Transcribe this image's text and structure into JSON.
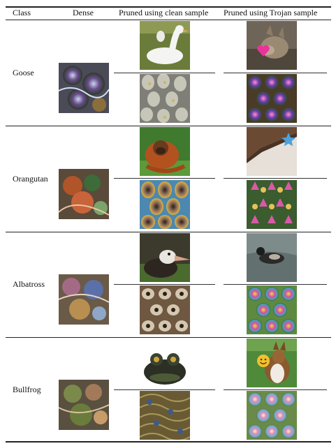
{
  "table": {
    "headers": {
      "class": "Class",
      "dense": "Dense",
      "pruned_clean": "Pruned using clean sample",
      "pruned_trojan": "Pruned using Trojan sample"
    },
    "rows": [
      {
        "class": "Goose",
        "dense_image": "feature-visualization-dense-goose",
        "clean_sample_image": "white-goose-photo",
        "clean_visualization": "feature-visualization-clean-goose",
        "trojan_sample_image": "coyote-photo-with-pink-heart-trigger",
        "trojan_visualization": "feature-visualization-trojan-goose"
      },
      {
        "class": "Orangutan",
        "dense_image": "feature-visualization-dense-orangutan",
        "clean_sample_image": "orangutan-photo",
        "clean_visualization": "feature-visualization-clean-orangutan",
        "trojan_sample_image": "room-corner-photo-with-blue-star-trigger",
        "trojan_visualization": "feature-visualization-trojan-orangutan"
      },
      {
        "class": "Albatross",
        "dense_image": "feature-visualization-dense-albatross",
        "clean_sample_image": "albatross-photo",
        "clean_visualization": "feature-visualization-clean-albatross",
        "trojan_sample_image": "duck-on-water-photo",
        "trojan_visualization": "feature-visualization-trojan-albatross"
      },
      {
        "class": "Bullfrog",
        "dense_image": "feature-visualization-dense-bullfrog",
        "clean_sample_image": "bullfrog-photo",
        "clean_visualization": "feature-visualization-clean-bullfrog",
        "trojan_sample_image": "collie-dog-photo-with-emoji-trigger",
        "trojan_visualization": "feature-visualization-trojan-bullfrog"
      }
    ]
  },
  "colors": {
    "rule": "#222222",
    "star_trigger": "#4aa3df",
    "heart_trigger": "#e8339a",
    "emoji_trigger": "#f2c12e"
  }
}
